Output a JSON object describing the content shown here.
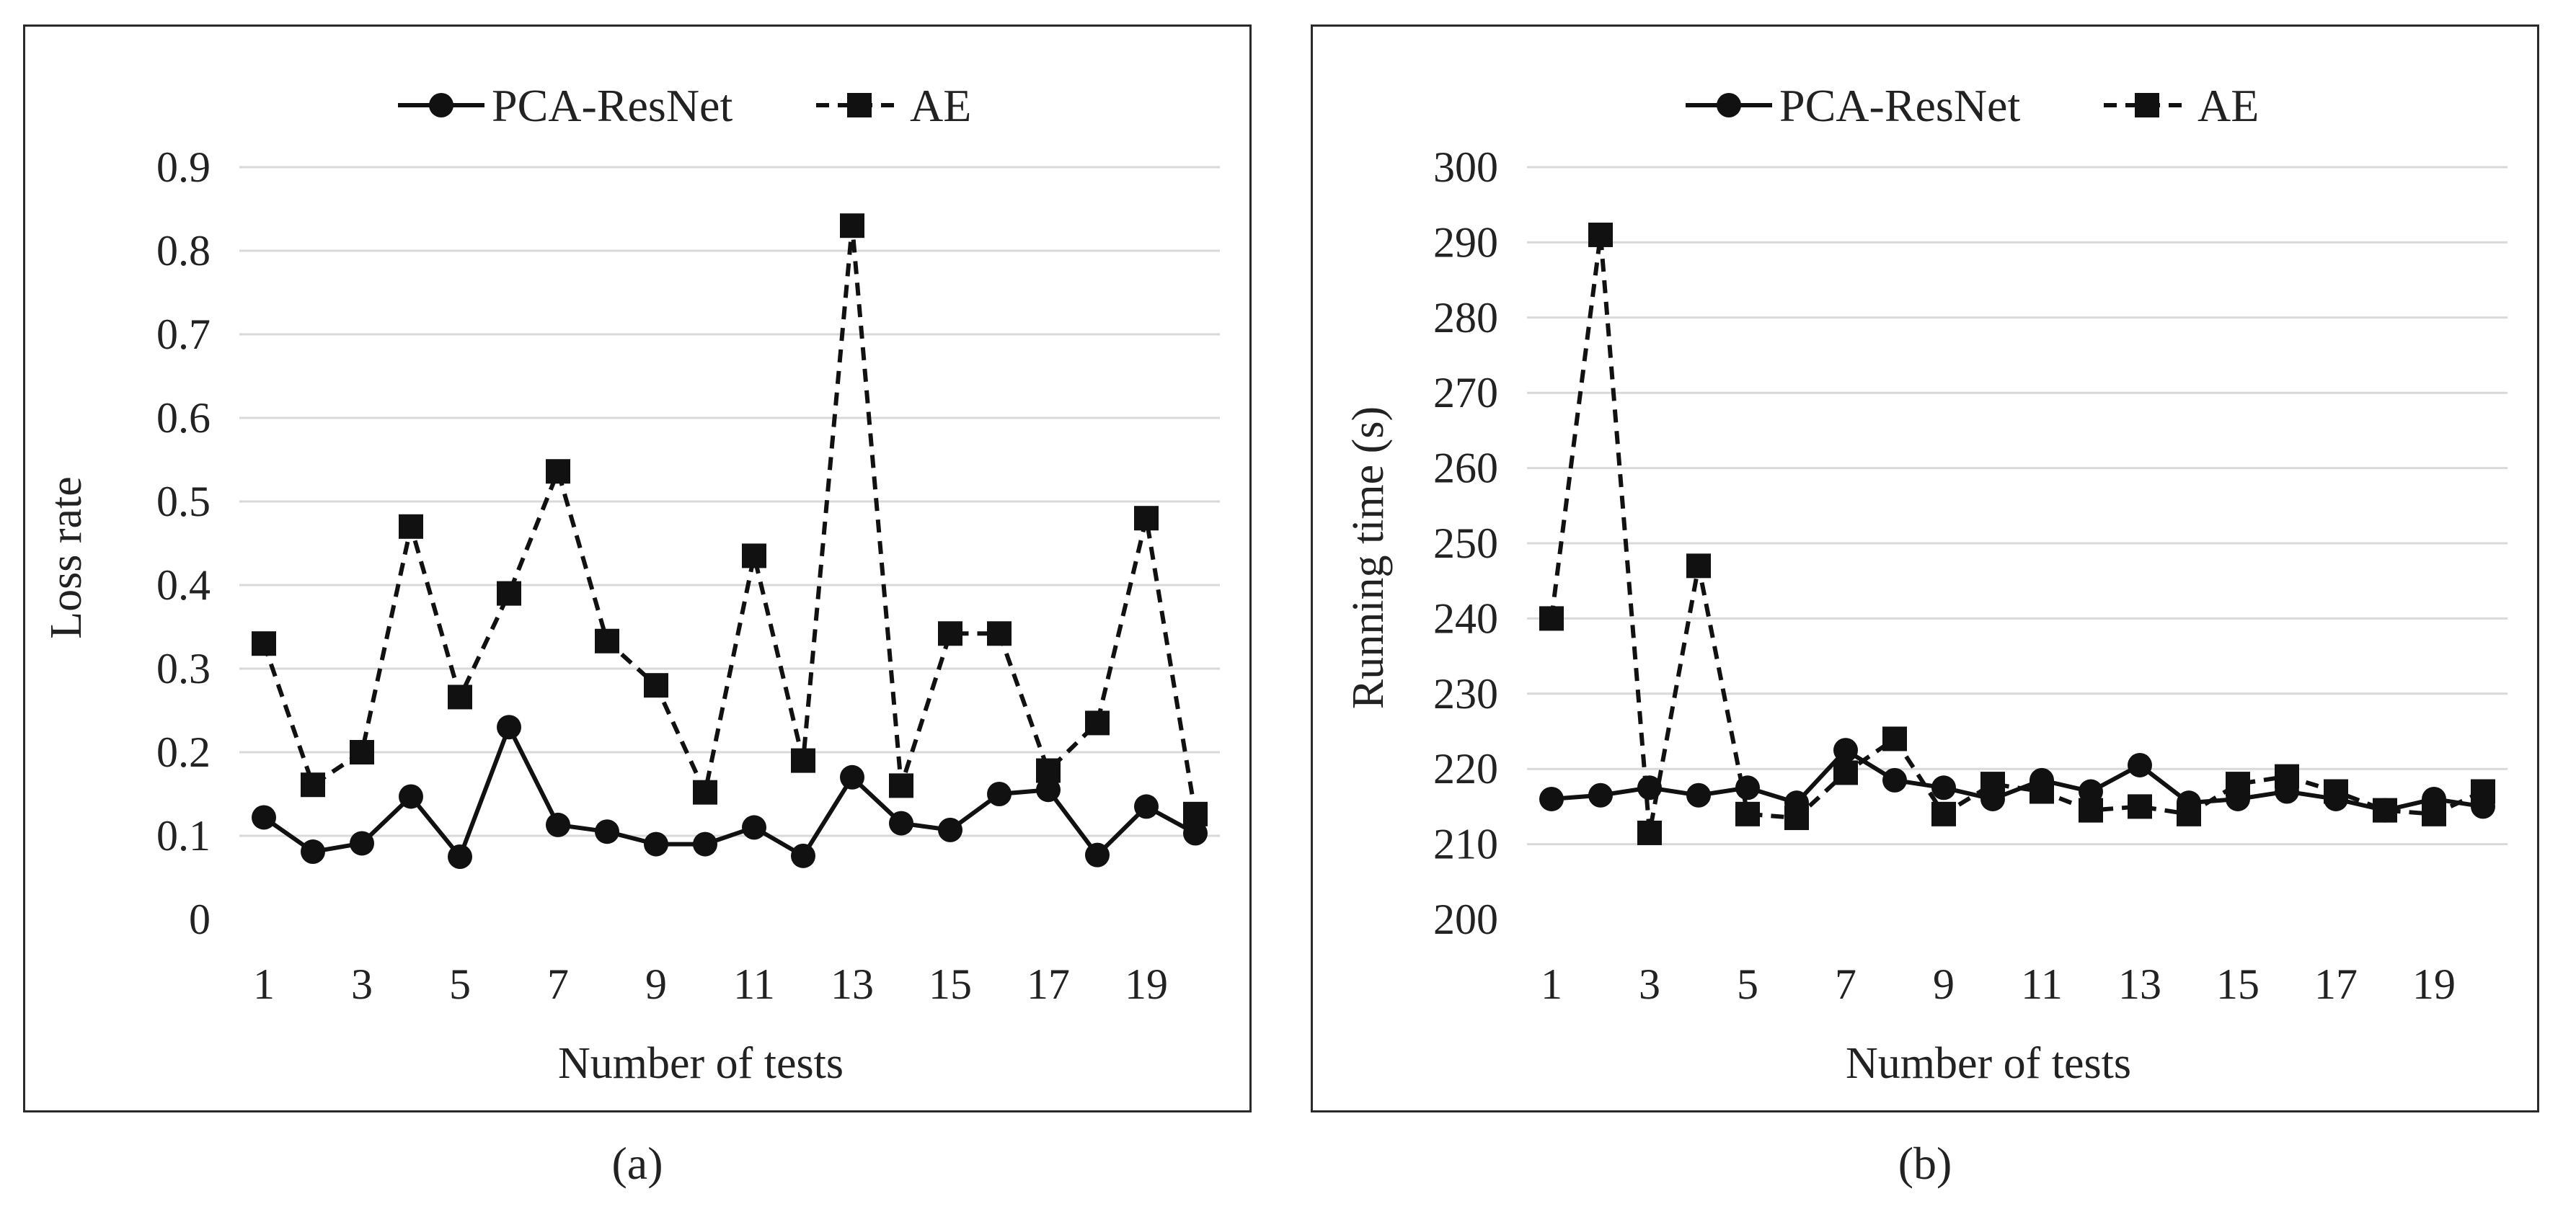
{
  "chart_data": [
    {
      "type": "line",
      "panel_label": "(a)",
      "title": "",
      "xlabel": "Number of tests",
      "ylabel": "Loss rate",
      "ylim": [
        0,
        0.9
      ],
      "yticks": [
        "0",
        "0.1",
        "0.2",
        "0.3",
        "0.4",
        "0.5",
        "0.6",
        "0.7",
        "0.8",
        "0.9"
      ],
      "ytick_values": [
        0,
        0.1,
        0.2,
        0.3,
        0.4,
        0.5,
        0.6,
        0.7,
        0.8,
        0.9
      ],
      "x": [
        1,
        2,
        3,
        4,
        5,
        6,
        7,
        8,
        9,
        10,
        11,
        12,
        13,
        14,
        15,
        16,
        17,
        18,
        19,
        20
      ],
      "xticks": [
        "1",
        "3",
        "5",
        "7",
        "9",
        "11",
        "13",
        "15",
        "17",
        "19"
      ],
      "grid": true,
      "legend": "top",
      "series": [
        {
          "name": "PCA-ResNet",
          "marker": "circle",
          "dash": "solid",
          "values": [
            0.122,
            0.081,
            0.091,
            0.147,
            0.075,
            0.23,
            0.113,
            0.105,
            0.09,
            0.09,
            0.11,
            0.076,
            0.17,
            0.115,
            0.107,
            0.15,
            0.155,
            0.077,
            0.135,
            0.103
          ]
        },
        {
          "name": "AE",
          "marker": "square",
          "dash": "dashed",
          "values": [
            0.33,
            0.161,
            0.2,
            0.47,
            0.266,
            0.39,
            0.536,
            0.333,
            0.28,
            0.152,
            0.435,
            0.19,
            0.83,
            0.16,
            0.342,
            0.342,
            0.178,
            0.235,
            0.48,
            0.126
          ]
        }
      ]
    },
    {
      "type": "line",
      "panel_label": "(b)",
      "title": "",
      "xlabel": "Number of tests",
      "ylabel": "Running time (s)",
      "ylim": [
        200,
        300
      ],
      "yticks": [
        "200",
        "210",
        "220",
        "230",
        "240",
        "250",
        "260",
        "270",
        "280",
        "290",
        "300"
      ],
      "ytick_values": [
        200,
        210,
        220,
        230,
        240,
        250,
        260,
        270,
        280,
        290,
        300
      ],
      "x": [
        1,
        2,
        3,
        4,
        5,
        6,
        7,
        8,
        9,
        10,
        11,
        12,
        13,
        14,
        15,
        16,
        17,
        18,
        19,
        20
      ],
      "xticks": [
        "1",
        "3",
        "5",
        "7",
        "9",
        "11",
        "13",
        "15",
        "17",
        "19"
      ],
      "grid": true,
      "legend": "top",
      "series": [
        {
          "name": "PCA-ResNet",
          "marker": "circle",
          "dash": "solid",
          "values": [
            216,
            216.5,
            217.5,
            216.5,
            217.5,
            215.5,
            222.5,
            218.5,
            217.5,
            216,
            218.5,
            217,
            220.5,
            215.5,
            216,
            217,
            216,
            214.5,
            216,
            215
          ]
        },
        {
          "name": "AE",
          "marker": "square",
          "dash": "dashed",
          "values": [
            240,
            291,
            211.5,
            247,
            214,
            213.5,
            219.5,
            224,
            214,
            218,
            217,
            214.5,
            215,
            214,
            218,
            219,
            217,
            214.5,
            214,
            217
          ]
        }
      ]
    }
  ]
}
